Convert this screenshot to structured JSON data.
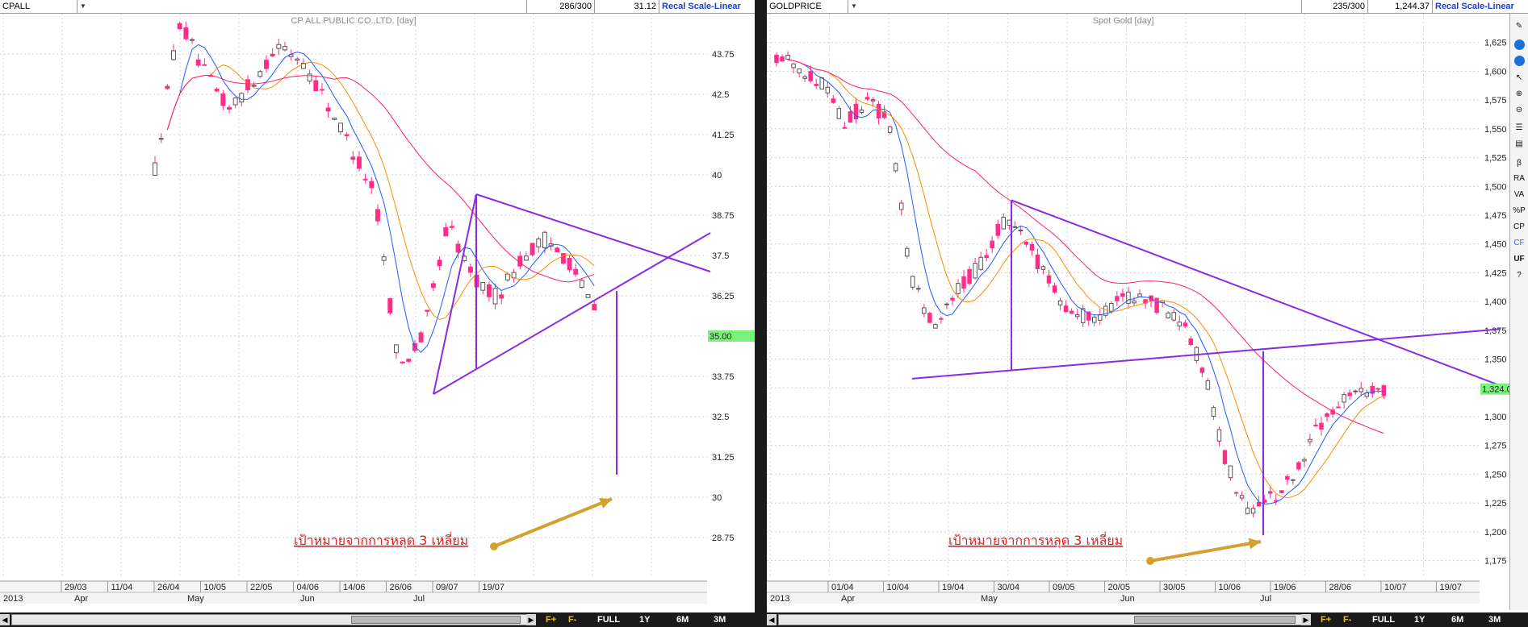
{
  "left": {
    "symbol": "CPALL",
    "count": "286/300",
    "last": "31.12",
    "recal": "Recal Scale-Linear",
    "title": "CP ALL PUBLIC CO.,LTD. [day]",
    "ymin": 27.5,
    "ymax": 45.0,
    "y_ticks": [
      "43.75",
      "42.5",
      "41.25",
      "40",
      "38.75",
      "37.5",
      "36.25",
      "35",
      "33.75",
      "32.5",
      "31.25",
      "30",
      "28.75"
    ],
    "price_badge": "35.00",
    "x_dates": [
      "29/03",
      "11/04",
      "26/04",
      "10/05",
      "22/05",
      "04/06",
      "14/06",
      "26/06",
      "09/07",
      "19/07"
    ],
    "year": "2013",
    "months": [
      "Apr",
      "May",
      "Jun",
      "Jul"
    ],
    "note": "เป้าหมายจากการหลุด 3 เหลี่ยม"
  },
  "right": {
    "symbol": "GOLDPRICE",
    "count": "235/300",
    "last": "1,244.37",
    "recal": "Recal Scale-Linear",
    "title": "Spot Gold [day]",
    "ymin": 1160,
    "ymax": 1650,
    "y_ticks": [
      "1,625",
      "1,600",
      "1,575",
      "1,550",
      "1,525",
      "1,500",
      "1,475",
      "1,450",
      "1,425",
      "1,400",
      "1,375",
      "1,350",
      "1,325",
      "1,300",
      "1,275",
      "1,250",
      "1,225",
      "1,200",
      "1,175"
    ],
    "price_badge": "1,324.0",
    "x_dates": [
      "01/04",
      "10/04",
      "19/04",
      "30/04",
      "09/05",
      "20/05",
      "30/05",
      "10/06",
      "19/06",
      "28/06",
      "10/07",
      "19/07"
    ],
    "year": "2013",
    "months": [
      "Apr",
      "May",
      "Jun",
      "Jul"
    ],
    "note": "เป้าหมายจากการหลุด 3 เหลี่ยม"
  },
  "bottom": {
    "full": "FULL",
    "y1": "1Y",
    "m6": "6M",
    "m3": "3M",
    "zoom_in": "F+",
    "zoom_out": "F-"
  },
  "sidebar": [
    "β",
    "RA",
    "VA",
    "%P",
    "CP",
    "CF",
    "UF"
  ],
  "colors": {
    "up": "#ff2d8a",
    "ma1": "#1e5cff",
    "ma2": "#ff8c00",
    "ma3": "#ff1e78",
    "tri": "#8a2be2",
    "arrow": "#d4a030",
    "note": "#e02020"
  }
}
